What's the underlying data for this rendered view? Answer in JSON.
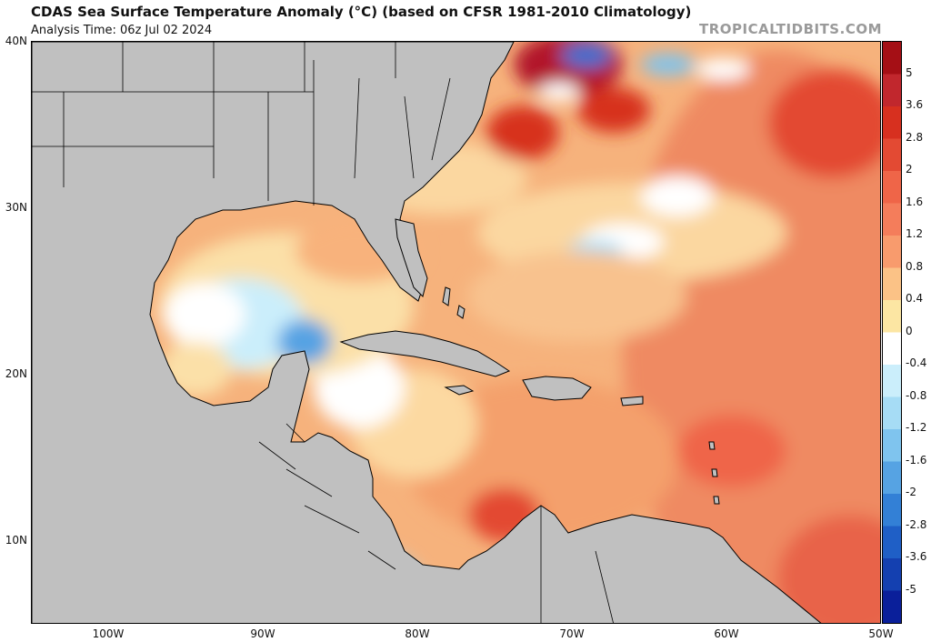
{
  "header": {
    "title": "CDAS Sea Surface Temperature Anomaly (°C) (based on CFSR 1981-2010 Climatology)",
    "analysis_time": "Analysis Time: 06z Jul 02 2024",
    "watermark": "TROPICALTIDBITS.COM"
  },
  "map": {
    "lon_range": [
      -105,
      -50
    ],
    "lat_range": [
      5,
      40
    ],
    "lat_labels": [
      "40N",
      "30N",
      "20N",
      "10N"
    ],
    "lon_labels": [
      "100W",
      "90W",
      "80W",
      "70W",
      "60W",
      "50W"
    ],
    "land_color": "#c0c0c0",
    "border_color": "#000000"
  },
  "colorbar": {
    "labels": [
      "5",
      "3.6",
      "2.8",
      "2",
      "1.6",
      "1.2",
      "0.8",
      "0.4",
      "0",
      "-0.4",
      "-0.8",
      "-1.2",
      "-1.6",
      "-2",
      "-2.8",
      "-3.6",
      "-5"
    ],
    "colors": [
      "#a50f15",
      "#c1272d",
      "#d7301f",
      "#e34a33",
      "#ef6548",
      "#f47d5b",
      "#f89b6d",
      "#fbc286",
      "#fce6a3",
      "#ffffff",
      "#cbeefb",
      "#a6dcf5",
      "#7fc4ee",
      "#56a3e3",
      "#3380d6",
      "#1f5fc6",
      "#1440b0",
      "#0a1f9a"
    ]
  }
}
